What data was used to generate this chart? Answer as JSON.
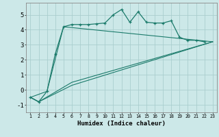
{
  "xlabel": "Humidex (Indice chaleur)",
  "x": [
    1,
    2,
    3,
    4,
    5,
    6,
    7,
    8,
    9,
    10,
    11,
    12,
    13,
    14,
    15,
    16,
    17,
    18,
    19,
    20,
    21,
    22,
    23
  ],
  "line1": [
    -0.5,
    -0.8,
    -0.1,
    2.4,
    4.2,
    4.35,
    4.35,
    4.35,
    4.4,
    4.45,
    5.0,
    5.35,
    4.5,
    5.2,
    4.5,
    4.45,
    4.45,
    4.6,
    3.5,
    3.3,
    3.3,
    3.2,
    null
  ],
  "line2_x": [
    1,
    3,
    5,
    23
  ],
  "line2_y": [
    -0.5,
    -0.1,
    4.2,
    3.2
  ],
  "line3_x": [
    1,
    2,
    6,
    23
  ],
  "line3_y": [
    -0.5,
    -0.8,
    0.5,
    3.2
  ],
  "line4_x": [
    1,
    2,
    6,
    23
  ],
  "line4_y": [
    -0.5,
    -0.8,
    0.3,
    3.2
  ],
  "color": "#1a7a6a",
  "bg_color": "#cce8e8",
  "grid_color": "#aacece",
  "ylim": [
    -1.5,
    5.8
  ],
  "yticks": [
    -1,
    0,
    1,
    2,
    3,
    4,
    5
  ],
  "xlim": [
    0.5,
    23.5
  ]
}
